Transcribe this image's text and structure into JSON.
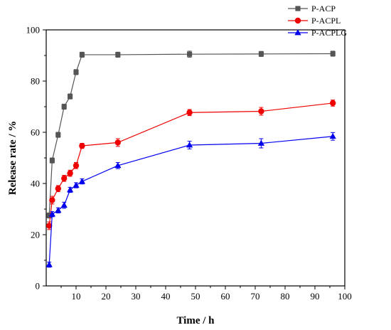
{
  "chart_data": {
    "type": "line",
    "xlabel": "Time / h",
    "ylabel": "Release  rate / %",
    "xlim": [
      0,
      100
    ],
    "ylim": [
      0,
      100
    ],
    "xticks": [
      10,
      20,
      30,
      40,
      50,
      60,
      70,
      80,
      90,
      100
    ],
    "yticks": [
      0,
      20,
      40,
      60,
      80,
      100
    ],
    "legend_position": "top-right",
    "series": [
      {
        "name": "P-ACP",
        "color": "#555555",
        "marker": "square",
        "x": [
          1,
          2,
          4,
          6,
          8,
          10,
          12,
          24,
          48,
          72,
          96
        ],
        "y": [
          27.5,
          49,
          59,
          70,
          74,
          83.5,
          90.3,
          90.3,
          90.5,
          90.6,
          90.7
        ],
        "err": [
          1,
          1,
          1,
          1,
          1,
          1,
          1,
          1,
          1.2,
          1,
          1
        ]
      },
      {
        "name": "P-ACPL",
        "color": "#ee0000",
        "marker": "circle",
        "x": [
          1,
          2,
          4,
          6,
          8,
          10,
          12,
          24,
          48,
          72,
          96
        ],
        "y": [
          23.5,
          33.5,
          38,
          42,
          44,
          47,
          54.7,
          56,
          67.7,
          68.2,
          71.4
        ],
        "err": [
          1.5,
          1.5,
          1.2,
          1.2,
          1.2,
          1.2,
          1,
          1.5,
          1.2,
          1.5,
          1.2
        ]
      },
      {
        "name": "P-ACPLG",
        "color": "#0000ee",
        "marker": "triangle",
        "x": [
          1,
          2,
          4,
          6,
          8,
          10,
          12,
          24,
          48,
          72,
          96
        ],
        "y": [
          8.3,
          28,
          29.5,
          31.5,
          37.5,
          39.3,
          40.8,
          47,
          55,
          55.7,
          58.4
        ],
        "err": [
          1,
          1,
          1,
          1.2,
          1,
          1,
          1,
          1.2,
          1.5,
          1.8,
          1.5
        ]
      }
    ]
  }
}
